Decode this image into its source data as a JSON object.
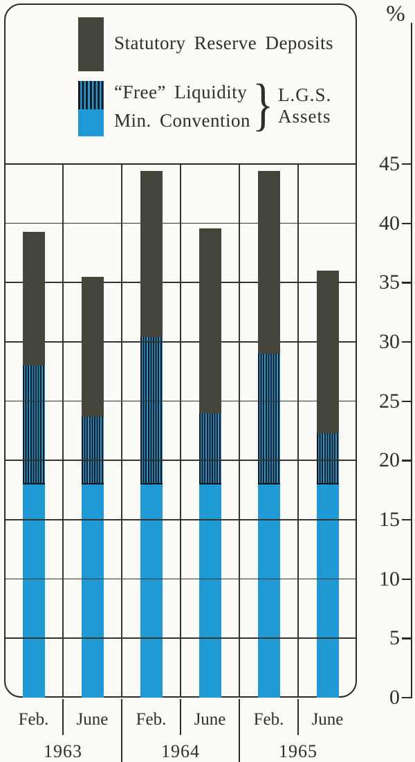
{
  "legend": {
    "items": [
      {
        "key": "statutory_reserve_deposits",
        "label": "Statutory Reserve Deposits",
        "swatch": "solid-dark"
      },
      {
        "key": "free_liquidity",
        "label": "“Free” Liquidity",
        "swatch": "striped"
      },
      {
        "key": "min_convention",
        "label": "Min. Convention",
        "swatch": "solid-blue"
      }
    ],
    "group": {
      "brace": "}",
      "line1": "L.G.S.",
      "line2": "Assets"
    }
  },
  "colors": {
    "bar_blue": "#1f9ad5",
    "bar_dark": "#45453b",
    "stripe_dark": "#17171b",
    "line": "#2b2b28",
    "background": "#fbfaf6",
    "text": "#2e2e2a"
  },
  "chart_data": {
    "type": "bar",
    "stacked": true,
    "title": "",
    "xlabel": "",
    "ylabel": "%",
    "ylim": [
      0,
      45
    ],
    "y_ticks": [
      0,
      5,
      10,
      15,
      20,
      25,
      30,
      35,
      40,
      45
    ],
    "grid": true,
    "legend_position": "top",
    "categories": [
      "Feb. 1963",
      "June 1963",
      "Feb. 1964",
      "June 1964",
      "Feb. 1965",
      "June 1965"
    ],
    "month_labels": [
      "Feb.",
      "June",
      "Feb.",
      "June",
      "Feb.",
      "June"
    ],
    "year_labels": [
      "1963",
      "1964",
      "1965"
    ],
    "series": [
      {
        "name": "Min. Convention",
        "pattern": "solid-blue",
        "values": [
          18,
          18,
          18,
          18,
          18,
          18
        ]
      },
      {
        "name": "“Free” Liquidity",
        "pattern": "striped",
        "values": [
          10.0,
          5.7,
          12.4,
          6.0,
          11.0,
          4.3
        ]
      },
      {
        "name": "Statutory Reserve Deposits",
        "pattern": "solid-dark",
        "values": [
          11.3,
          11.8,
          14.0,
          15.6,
          15.4,
          13.7
        ]
      }
    ],
    "bar_totals": [
      39.3,
      35.5,
      44.4,
      39.6,
      44.4,
      36.0
    ]
  }
}
